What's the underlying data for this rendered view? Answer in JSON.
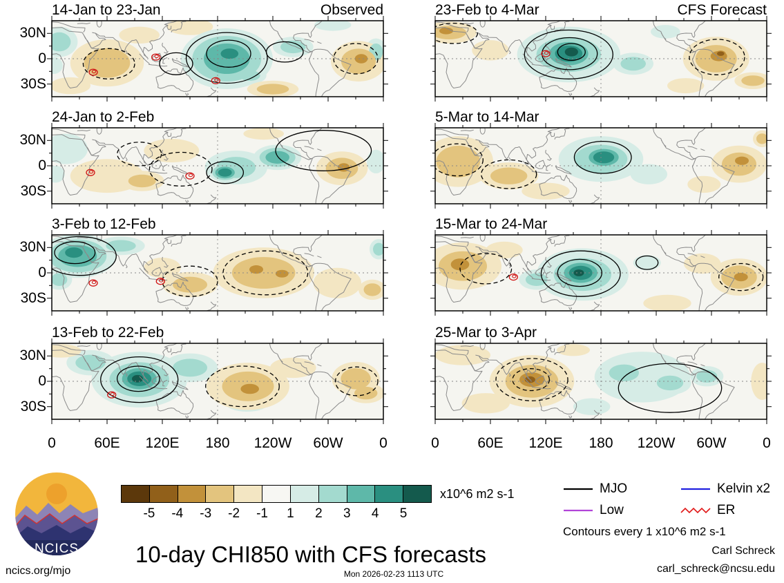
{
  "page": {
    "title": "10-day CHI850 with CFS forecasts",
    "footer_left": "ncics.org/mjo",
    "footer_center": "Mon 2026-02-23 1113 UTC",
    "credit_name": "Carl Schreck",
    "credit_email": "carl_schreck@ncsu.edu",
    "contours_note": "Contours every 1 x10^6 m2 s-1"
  },
  "logo": {
    "text": "NCICS"
  },
  "legend": {
    "items": [
      {
        "label": "MJO",
        "color": "#000000",
        "style": "solid"
      },
      {
        "label": "Kelvin x2",
        "color": "#2020e0",
        "style": "solid"
      },
      {
        "label": "Low",
        "color": "#b144d8",
        "style": "solid"
      },
      {
        "label": "ER",
        "color": "#e01616",
        "style": "zigzag"
      }
    ]
  },
  "colorbar": {
    "units_label": "x10^6 m2 s-1",
    "tick_labels": [
      "-5",
      "-4",
      "-3",
      "-2",
      "-1",
      "1",
      "2",
      "3",
      "4",
      "5"
    ],
    "colors": [
      "#5c380b",
      "#91601a",
      "#c2913a",
      "#e3c47e",
      "#f3e6c3",
      "#f7f7f3",
      "#d6ece6",
      "#a3dacf",
      "#5eb8a9",
      "#2a8f80",
      "#145a4d"
    ]
  },
  "chart_data": {
    "type": "heatmap",
    "title": "10-day CHI850 with CFS forecasts",
    "variable": "CHI850 velocity potential anomaly",
    "units": "x10^6 m2 s-1",
    "contour_interval": "1 x10^6 m2 s-1",
    "columns": [
      "Observed",
      "CFS Forecast"
    ],
    "lon_range": [
      0,
      360
    ],
    "lat_range": [
      -45,
      45
    ],
    "lon_tick_labels": [
      "0",
      "60E",
      "120E",
      "180",
      "120W",
      "60W",
      "0"
    ],
    "lat_tick_labels": [
      "30N",
      "0",
      "30S"
    ],
    "levels": [
      -5,
      -4,
      -3,
      -2,
      -1,
      1,
      2,
      3,
      4,
      5
    ],
    "palette": {
      "positive": [
        "#d6ece6",
        "#a3dacf",
        "#5eb8a9",
        "#2a8f80",
        "#145a4d"
      ],
      "negative": [
        "#f3e6c3",
        "#e3c47e",
        "#c2913a",
        "#91601a",
        "#5c380b"
      ],
      "background": "#f5f5f0",
      "coast": "#8a8a8a"
    },
    "panels": [
      {
        "title": "14-Jan to 23-Jan",
        "column": 0,
        "row": 0,
        "anomalies": [
          [
            8,
            20,
            20,
            18,
            2
          ],
          [
            2,
            -8,
            10,
            10,
            1
          ],
          [
            60,
            -5,
            40,
            28,
            -2
          ],
          [
            20,
            -32,
            22,
            10,
            -1
          ],
          [
            95,
            28,
            22,
            10,
            -1
          ],
          [
            150,
            38,
            25,
            10,
            -1
          ],
          [
            190,
            0,
            50,
            36,
            3
          ],
          [
            193,
            6,
            22,
            14,
            4
          ],
          [
            215,
            -20,
            18,
            10,
            2
          ],
          [
            262,
            14,
            22,
            12,
            2
          ],
          [
            305,
            40,
            20,
            7,
            1
          ],
          [
            352,
            8,
            12,
            16,
            2
          ],
          [
            333,
            -3,
            30,
            24,
            -2
          ],
          [
            336,
            0,
            14,
            11,
            -3
          ],
          [
            240,
            -36,
            28,
            10,
            -2
          ]
        ],
        "mjo_contours": [
          [
            190,
            1,
            44,
            30,
            "solid"
          ],
          [
            192,
            6,
            24,
            16,
            "solid"
          ],
          [
            135,
            -6,
            18,
            13,
            "solid"
          ],
          [
            253,
            8,
            20,
            12,
            "solid"
          ],
          [
            62,
            -6,
            28,
            18,
            "dashed"
          ],
          [
            330,
            0,
            24,
            18,
            "dashed"
          ]
        ],
        "er_contours": [
          [
            45,
            -16
          ],
          [
            113,
            2
          ],
          [
            178,
            -26
          ]
        ]
      },
      {
        "title": "24-Jan to 2-Feb",
        "column": 0,
        "row": 1,
        "anomalies": [
          [
            15,
            20,
            24,
            18,
            1
          ],
          [
            4,
            -10,
            10,
            10,
            1
          ],
          [
            60,
            -12,
            40,
            20,
            -1
          ],
          [
            98,
            -18,
            24,
            12,
            -2
          ],
          [
            130,
            18,
            30,
            14,
            -1
          ],
          [
            200,
            -2,
            34,
            20,
            2
          ],
          [
            188,
            -8,
            17,
            11,
            4
          ],
          [
            245,
            10,
            26,
            15,
            3
          ],
          [
            352,
            5,
            10,
            14,
            1
          ],
          [
            315,
            -3,
            28,
            20,
            -2
          ],
          [
            317,
            -2,
            13,
            10,
            -3
          ],
          [
            230,
            38,
            22,
            7,
            -1
          ]
        ],
        "mjo_contours": [
          [
            188,
            -8,
            20,
            13,
            "solid"
          ],
          [
            295,
            18,
            52,
            24,
            "solid"
          ],
          [
            140,
            -4,
            34,
            20,
            "dashed"
          ],
          [
            95,
            14,
            24,
            14,
            "dashed"
          ]
        ],
        "er_contours": [
          [
            42,
            -8
          ],
          [
            150,
            -12
          ]
        ]
      },
      {
        "title": "3-Feb to 12-Feb",
        "column": 0,
        "row": 2,
        "anomalies": [
          [
            28,
            20,
            42,
            26,
            3
          ],
          [
            24,
            24,
            22,
            14,
            4
          ],
          [
            8,
            -8,
            14,
            12,
            2
          ],
          [
            75,
            32,
            26,
            11,
            2
          ],
          [
            355,
            28,
            10,
            12,
            2
          ],
          [
            230,
            0,
            55,
            30,
            -2
          ],
          [
            222,
            4,
            15,
            10,
            -3
          ],
          [
            250,
            -1,
            14,
            9,
            -3
          ],
          [
            150,
            -14,
            30,
            15,
            -2
          ],
          [
            120,
            6,
            20,
            12,
            -1
          ],
          [
            310,
            -12,
            26,
            18,
            -1
          ],
          [
            348,
            -20,
            15,
            12,
            -2
          ]
        ],
        "mjo_contours": [
          [
            30,
            20,
            40,
            23,
            "solid"
          ],
          [
            25,
            24,
            22,
            13,
            "solid"
          ],
          [
            150,
            -10,
            30,
            18,
            "dashed"
          ],
          [
            232,
            0,
            46,
            26,
            "dashed"
          ]
        ],
        "er_contours": [
          [
            45,
            -12
          ],
          [
            118,
            -10
          ]
        ]
      },
      {
        "title": "13-Feb to 22-Feb",
        "column": 0,
        "row": 3,
        "anomalies": [
          [
            95,
            2,
            52,
            33,
            2
          ],
          [
            95,
            3,
            30,
            20,
            4
          ],
          [
            93,
            3,
            15,
            11,
            5
          ],
          [
            150,
            16,
            30,
            17,
            2
          ],
          [
            42,
            22,
            26,
            15,
            2
          ],
          [
            212,
            -25,
            24,
            11,
            1
          ],
          [
            213,
            -6,
            45,
            28,
            -2
          ],
          [
            215,
            -9,
            20,
            12,
            -3
          ],
          [
            262,
            16,
            25,
            12,
            -1
          ],
          [
            330,
            3,
            26,
            20,
            -2
          ],
          [
            341,
            -14,
            20,
            12,
            -2
          ],
          [
            10,
            36,
            22,
            8,
            -1
          ]
        ],
        "mjo_contours": [
          [
            95,
            2,
            42,
            27,
            "solid"
          ],
          [
            94,
            3,
            23,
            15,
            "solid"
          ],
          [
            207,
            -6,
            40,
            24,
            "dashed"
          ],
          [
            331,
            0,
            23,
            17,
            "dashed"
          ]
        ],
        "er_contours": [
          [
            65,
            -16
          ]
        ]
      },
      {
        "title": "23-Feb to 4-Mar",
        "column": 1,
        "row": 0,
        "anomalies": [
          [
            145,
            5,
            56,
            33,
            2
          ],
          [
            145,
            6,
            34,
            22,
            4
          ],
          [
            148,
            8,
            18,
            13,
            5
          ],
          [
            215,
            -6,
            22,
            13,
            2
          ],
          [
            250,
            32,
            16,
            8,
            1
          ],
          [
            15,
            31,
            30,
            13,
            -2
          ],
          [
            12,
            33,
            15,
            8,
            -3
          ],
          [
            60,
            10,
            20,
            12,
            -1
          ],
          [
            305,
            0,
            36,
            26,
            -2
          ],
          [
            308,
            3,
            18,
            12,
            -3
          ],
          [
            310,
            6,
            9,
            6,
            -4
          ],
          [
            345,
            -26,
            20,
            10,
            -2
          ],
          [
            272,
            -32,
            20,
            9,
            -1
          ]
        ],
        "mjo_contours": [
          [
            145,
            5,
            48,
            29,
            "solid"
          ],
          [
            146,
            6,
            30,
            19,
            "solid"
          ],
          [
            148,
            8,
            15,
            10,
            "solid"
          ],
          [
            20,
            30,
            26,
            12,
            "dashed"
          ],
          [
            306,
            2,
            30,
            21,
            "dashed"
          ]
        ],
        "er_contours": [
          [
            120,
            6
          ]
        ]
      },
      {
        "title": "5-Mar to 14-Mar",
        "column": 1,
        "row": 1,
        "anomalies": [
          [
            25,
            5,
            38,
            30,
            -2
          ],
          [
            80,
            -12,
            32,
            16,
            -2
          ],
          [
            120,
            -30,
            26,
            10,
            -1
          ],
          [
            180,
            8,
            46,
            27,
            2
          ],
          [
            183,
            10,
            26,
            16,
            4
          ],
          [
            232,
            -10,
            20,
            12,
            1
          ],
          [
            330,
            2,
            30,
            22,
            -2
          ],
          [
            333,
            6,
            15,
            10,
            -3
          ],
          [
            292,
            -22,
            18,
            10,
            -1
          ],
          [
            355,
            32,
            10,
            10,
            -2
          ]
        ],
        "mjo_contours": [
          [
            182,
            10,
            31,
            19,
            "solid"
          ],
          [
            80,
            -10,
            30,
            17,
            "dashed"
          ],
          [
            24,
            7,
            28,
            19,
            "dashed"
          ]
        ],
        "er_contours": []
      },
      {
        "title": "15-Mar to 24-Mar",
        "column": 1,
        "row": 2,
        "anomalies": [
          [
            160,
            -2,
            50,
            31,
            2
          ],
          [
            158,
            0,
            29,
            19,
            4
          ],
          [
            156,
            0,
            14,
            10,
            5
          ],
          [
            110,
            -8,
            19,
            12,
            2
          ],
          [
            230,
            12,
            15,
            9,
            1
          ],
          [
            30,
            8,
            42,
            28,
            -2
          ],
          [
            27,
            10,
            20,
            14,
            -3
          ],
          [
            75,
            27,
            20,
            10,
            -1
          ],
          [
            330,
            -5,
            31,
            22,
            -2
          ],
          [
            332,
            -5,
            15,
            10,
            -3
          ],
          [
            290,
            11,
            20,
            12,
            -1
          ],
          [
            252,
            -36,
            26,
            10,
            -1
          ]
        ],
        "mjo_contours": [
          [
            158,
            -1,
            43,
            27,
            "solid"
          ],
          [
            157,
            0,
            24,
            16,
            "solid"
          ],
          [
            230,
            12,
            12,
            8,
            "solid"
          ],
          [
            55,
            5,
            28,
            18,
            "dashed"
          ],
          [
            332,
            -5,
            24,
            16,
            "dashed"
          ]
        ],
        "er_contours": [
          [
            85,
            -5
          ]
        ]
      },
      {
        "title": "25-Mar to 3-Apr",
        "column": 1,
        "row": 3,
        "anomalies": [
          [
            225,
            5,
            52,
            30,
            1
          ],
          [
            205,
            10,
            26,
            16,
            2
          ],
          [
            255,
            -2,
            23,
            14,
            2
          ],
          [
            295,
            6,
            18,
            12,
            2
          ],
          [
            170,
            -30,
            20,
            10,
            1
          ],
          [
            105,
            0,
            46,
            31,
            -2
          ],
          [
            105,
            2,
            27,
            17,
            -3
          ],
          [
            103,
            2,
            13,
            9,
            -4
          ],
          [
            30,
            31,
            30,
            12,
            -1
          ],
          [
            55,
            -26,
            26,
            12,
            -1
          ],
          [
            355,
            0,
            12,
            22,
            -1
          ],
          [
            150,
            37,
            18,
            7,
            -1
          ]
        ],
        "mjo_contours": [
          [
            105,
            2,
            39,
            25,
            "dashed"
          ],
          [
            104,
            2,
            20,
            13,
            "dashed"
          ],
          [
            255,
            -8,
            56,
            29,
            "solid"
          ]
        ],
        "er_contours": []
      }
    ]
  }
}
